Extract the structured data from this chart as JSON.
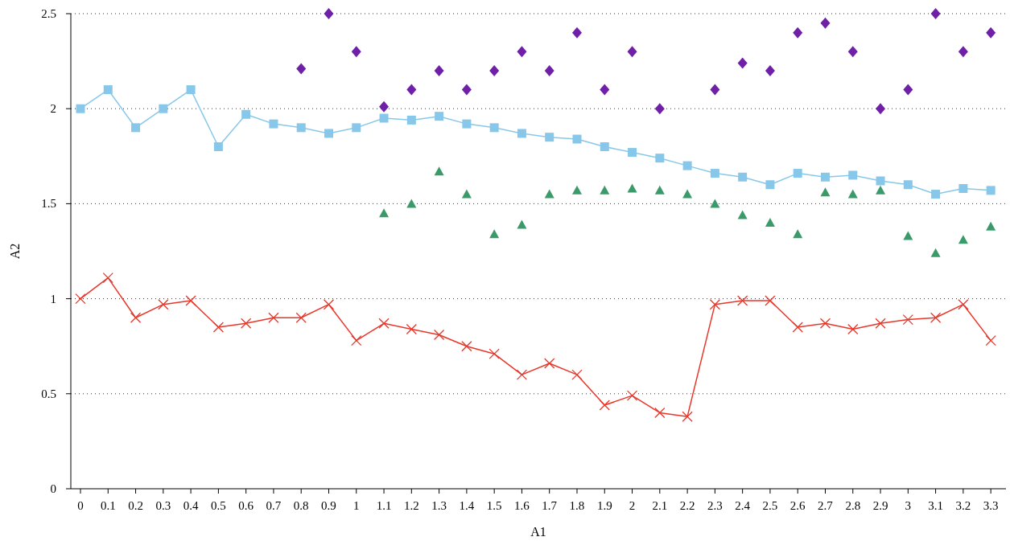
{
  "chart_data": {
    "type": "line",
    "xlabel": "A1",
    "ylabel": "A2",
    "x": [
      0,
      0.1,
      0.2,
      0.3,
      0.4,
      0.5,
      0.6,
      0.7,
      0.8,
      0.9,
      1,
      1.1,
      1.2,
      1.3,
      1.4,
      1.5,
      1.6,
      1.7,
      1.8,
      1.9,
      2,
      2.1,
      2.2,
      2.3,
      2.4,
      2.5,
      2.6,
      2.7,
      2.8,
      2.9,
      3,
      3.1,
      3.2,
      3.3
    ],
    "xlim": [
      -0.035,
      3.355
    ],
    "xticks": [
      0,
      0.1,
      0.2,
      0.3,
      0.4,
      0.5,
      0.6,
      0.7,
      0.8,
      0.9,
      1,
      1.1,
      1.2,
      1.3,
      1.4,
      1.5,
      1.6,
      1.7,
      1.8,
      1.9,
      2,
      2.1,
      2.2,
      2.3,
      2.4,
      2.5,
      2.6,
      2.7,
      2.8,
      2.9,
      3,
      3.1,
      3.2,
      3.3
    ],
    "ylim": [
      0,
      2.5
    ],
    "yticks": [
      0,
      0.5,
      1,
      1.5,
      2,
      2.5
    ],
    "grid": "y",
    "series": [
      {
        "color": "#87c8ea",
        "marker": "square",
        "values": [
          2.0,
          2.1,
          1.9,
          2.0,
          2.1,
          1.8,
          1.97,
          1.92,
          1.9,
          1.87,
          1.9,
          1.95,
          1.94,
          1.96,
          1.92,
          1.9,
          1.87,
          1.85,
          1.84,
          1.8,
          1.77,
          1.74,
          1.7,
          1.66,
          1.64,
          1.6,
          1.66,
          1.64,
          1.65,
          1.62,
          1.6,
          1.55,
          1.58,
          1.57
        ]
      },
      {
        "color": "#e8372a",
        "marker": "cross",
        "values": [
          1.0,
          1.11,
          0.9,
          0.97,
          0.99,
          0.85,
          0.87,
          0.9,
          0.9,
          0.97,
          0.78,
          0.87,
          0.84,
          0.81,
          0.75,
          0.71,
          0.6,
          0.66,
          0.6,
          0.44,
          0.49,
          0.4,
          0.38,
          0.97,
          0.99,
          0.99,
          0.85,
          0.87,
          0.84,
          0.87,
          0.89,
          0.9,
          0.97,
          0.78
        ]
      },
      {
        "type": "scatter",
        "color": "#7020a8",
        "marker": "diamond",
        "values": [
          null,
          null,
          null,
          null,
          null,
          null,
          null,
          null,
          2.21,
          2.5,
          2.3,
          2.01,
          2.1,
          2.2,
          2.1,
          2.2,
          2.3,
          2.2,
          2.4,
          2.1,
          2.3,
          2.0,
          null,
          2.1,
          2.24,
          2.2,
          2.4,
          2.45,
          2.3,
          2.0,
          2.1,
          2.5,
          2.3,
          2.4
        ]
      },
      {
        "type": "scatter",
        "color": "#3a9a6a",
        "marker": "triangle",
        "values": [
          null,
          null,
          null,
          null,
          null,
          null,
          null,
          null,
          null,
          null,
          null,
          1.45,
          1.5,
          1.67,
          1.55,
          1.34,
          1.39,
          1.55,
          1.57,
          1.57,
          1.58,
          1.57,
          1.55,
          1.5,
          1.44,
          1.4,
          1.34,
          1.56,
          1.55,
          1.57,
          1.33,
          1.24,
          1.31,
          1.38
        ]
      }
    ]
  }
}
